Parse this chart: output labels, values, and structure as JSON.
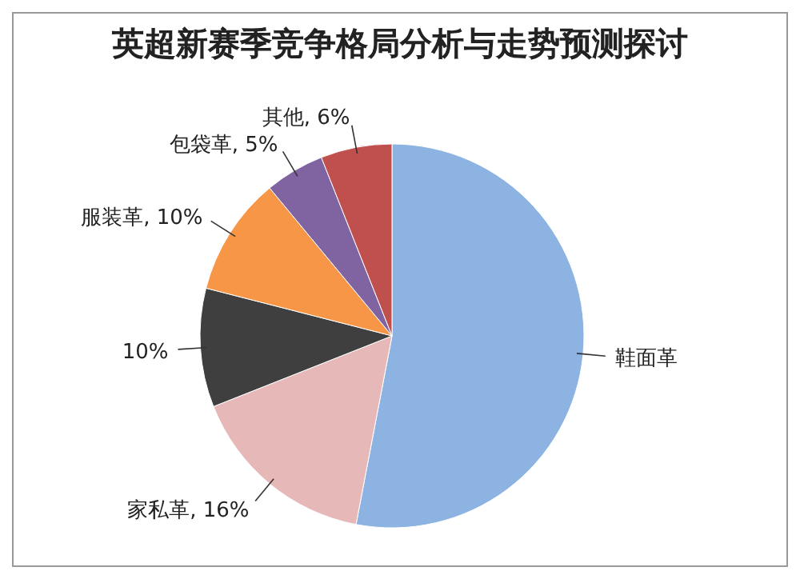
{
  "chart_data": {
    "type": "pie",
    "title": "英超新赛季竞争格局分析与走势预测探讨",
    "categories": [
      "鞋面革",
      "家私革",
      null,
      "服装革",
      "包袋革",
      "其他"
    ],
    "values": [
      53,
      16,
      10,
      10,
      5,
      6
    ],
    "value_labels": [
      null,
      "16%",
      "10%",
      "10%",
      "5%",
      "6%"
    ],
    "colors": [
      "#8db3e2",
      "#e6b9b8",
      "#3f3f3f",
      "#f79646",
      "#8064a2",
      "#c0504d"
    ]
  }
}
